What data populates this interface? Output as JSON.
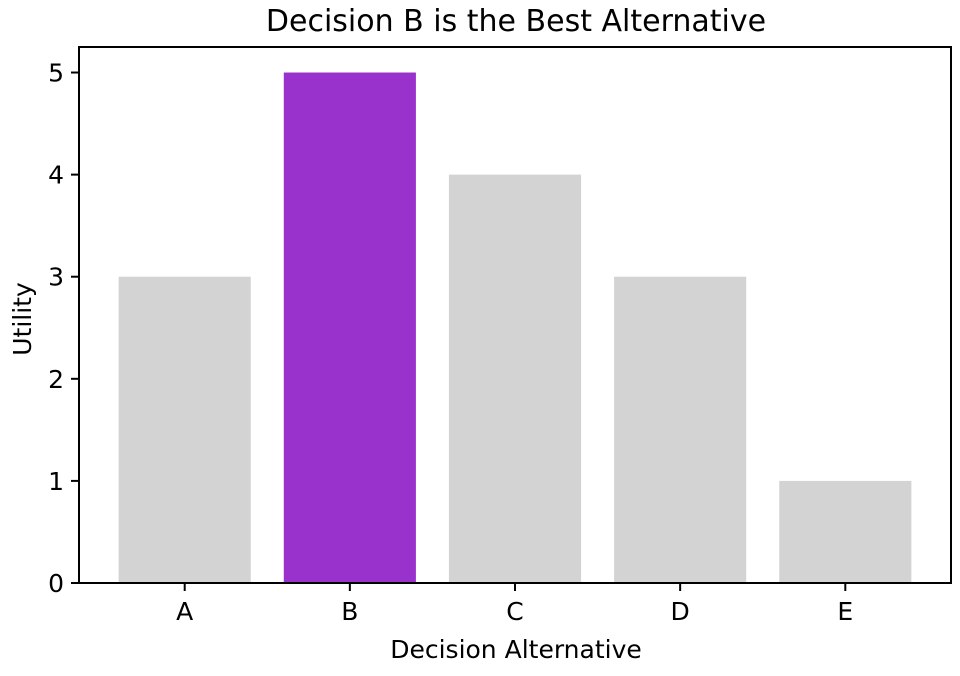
{
  "chart_data": {
    "type": "bar",
    "title": "Decision B is the Best Alternative",
    "xlabel": "Decision Alternative",
    "ylabel": "Utility",
    "categories": [
      "A",
      "B",
      "C",
      "D",
      "E"
    ],
    "values": [
      3,
      5,
      4,
      3,
      1
    ],
    "colors": [
      "#d3d3d3",
      "#9932cc",
      "#d3d3d3",
      "#d3d3d3",
      "#d3d3d3"
    ],
    "ylim": [
      0,
      5.25
    ],
    "yticks": [
      0,
      1,
      2,
      3,
      4,
      5
    ],
    "grid": false,
    "legend": "none"
  }
}
